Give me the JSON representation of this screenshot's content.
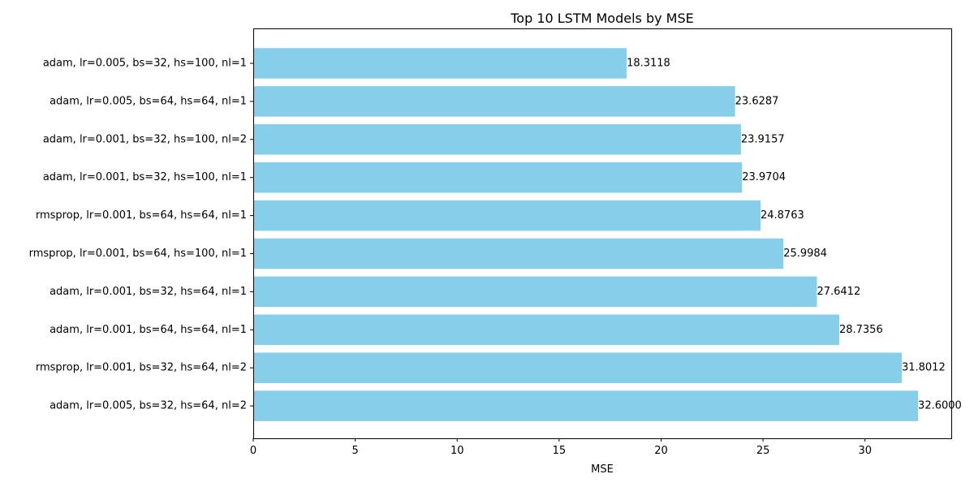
{
  "chart_data": {
    "type": "bar",
    "orientation": "horizontal",
    "title": "Top 10 LSTM Models by MSE",
    "xlabel": "MSE",
    "ylabel": "",
    "xlim": [
      0,
      34.23
    ],
    "xticks": [
      0,
      5,
      10,
      15,
      20,
      25,
      30
    ],
    "grid": false,
    "legend": "none",
    "bar_color": "#87ceeb",
    "categories": [
      "adam, lr=0.005, bs=32, hs=100, nl=1",
      "adam, lr=0.005, bs=64, hs=64, nl=1",
      "adam, lr=0.001, bs=32, hs=100, nl=2",
      "adam, lr=0.001, bs=32, hs=100, nl=1",
      "rmsprop, lr=0.001, bs=64, hs=64, nl=1",
      "rmsprop, lr=0.001, bs=64, hs=100, nl=1",
      "adam, lr=0.001, bs=32, hs=64, nl=1",
      "adam, lr=0.001, bs=64, hs=64, nl=1",
      "rmsprop, lr=0.001, bs=32, hs=64, nl=2",
      "adam, lr=0.005, bs=32, hs=64, nl=2"
    ],
    "values": [
      18.3118,
      23.6287,
      23.9157,
      23.9704,
      24.8763,
      25.9984,
      27.6412,
      28.7356,
      31.8012,
      32.6
    ],
    "value_labels": [
      "18.3118",
      "23.6287",
      "23.9157",
      "23.9704",
      "24.8763",
      "25.9984",
      "27.6412",
      "28.7356",
      "31.8012",
      "32.6000"
    ]
  }
}
